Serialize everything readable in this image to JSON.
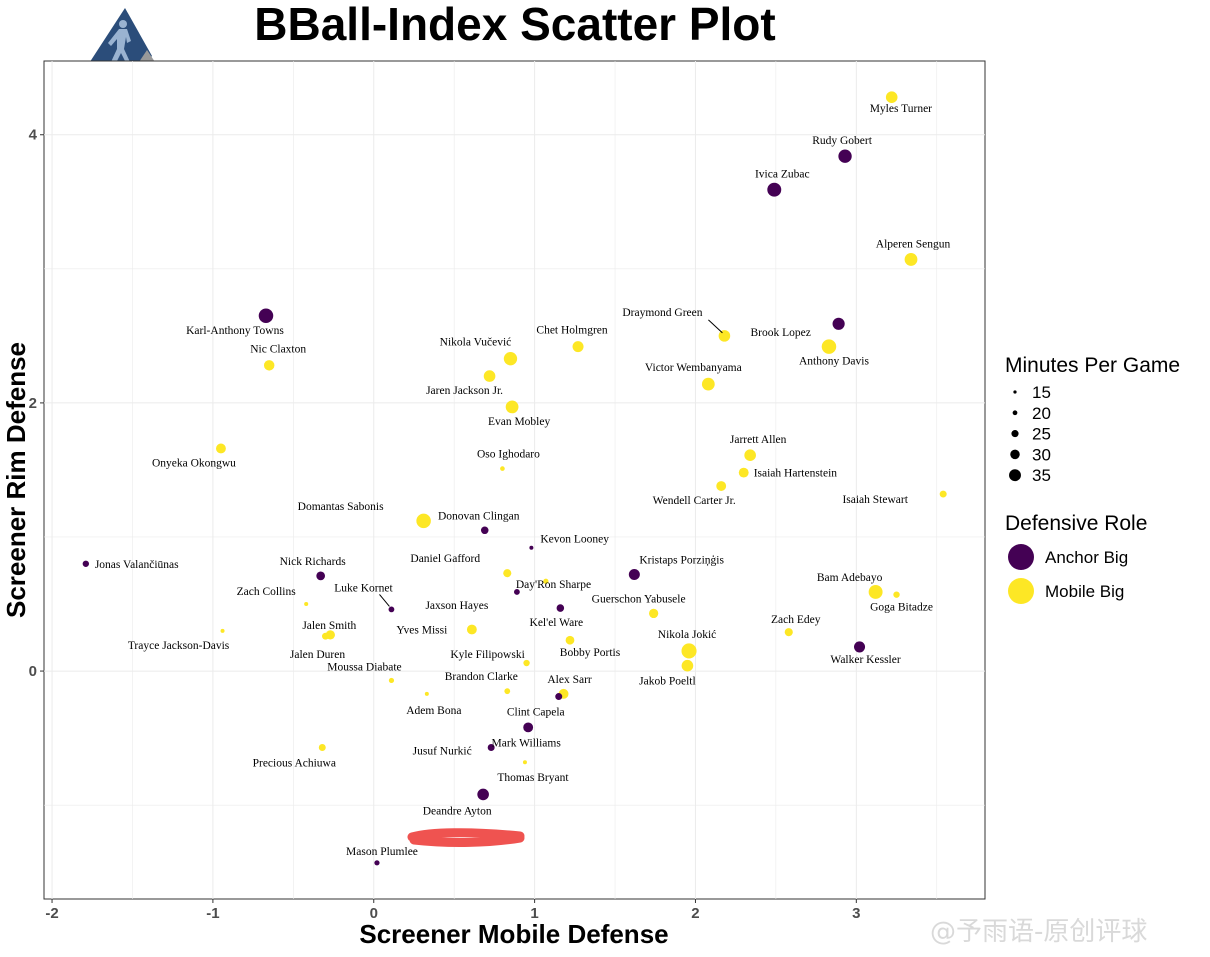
{
  "title": "BBall-Index Scatter Plot",
  "watermark": "@予雨语-原创评球",
  "colors": {
    "anchor": "#440154",
    "mobile": "#FDE725",
    "grid": "#ebebeb",
    "panel_border": "#333333",
    "logo_blue": "#2b4d7a",
    "logo_gray": "#999999",
    "scribble": "#ef5350"
  },
  "chart_data": {
    "type": "scatter",
    "title": "BBall-Index Scatter Plot",
    "xlabel": "Screener Mobile Defense",
    "ylabel": "Screener Rim Defense",
    "xlim": [
      -2.05,
      3.8
    ],
    "ylim": [
      -1.7,
      4.55
    ],
    "x_ticks": [
      -2,
      -1,
      0,
      1,
      2,
      3
    ],
    "y_ticks": [
      0,
      2,
      4
    ],
    "grid": true,
    "size_legend": {
      "title": "Minutes Per Game",
      "values": [
        15,
        20,
        25,
        30,
        35
      ]
    },
    "color_legend": {
      "title": "Defensive Role",
      "entries": [
        "Anchor Big",
        "Mobile Big"
      ]
    },
    "points": [
      {
        "name": "Myles Turner",
        "x": 3.22,
        "y": 4.28,
        "role": "Mobile Big",
        "mpg": 30
      },
      {
        "name": "Rudy Gobert",
        "x": 2.93,
        "y": 3.84,
        "role": "Anchor Big",
        "mpg": 33
      },
      {
        "name": "Ivica Zubac",
        "x": 2.49,
        "y": 3.59,
        "role": "Anchor Big",
        "mpg": 34
      },
      {
        "name": "Alperen Sengun",
        "x": 3.34,
        "y": 3.07,
        "role": "Mobile Big",
        "mpg": 32
      },
      {
        "name": "Brook Lopez",
        "x": 2.89,
        "y": 2.59,
        "role": "Anchor Big",
        "mpg": 31
      },
      {
        "name": "Draymond Green",
        "x": 2.18,
        "y": 2.5,
        "role": "Mobile Big",
        "mpg": 30
      },
      {
        "name": "Anthony Davis",
        "x": 2.83,
        "y": 2.42,
        "role": "Mobile Big",
        "mpg": 35
      },
      {
        "name": "Victor Wembanyama",
        "x": 2.08,
        "y": 2.14,
        "role": "Mobile Big",
        "mpg": 32
      },
      {
        "name": "Karl-Anthony Towns",
        "x": -0.67,
        "y": 2.65,
        "role": "Anchor Big",
        "mpg": 35
      },
      {
        "name": "Nic Claxton",
        "x": -0.65,
        "y": 2.28,
        "role": "Mobile Big",
        "mpg": 28
      },
      {
        "name": "Nikola Vučević",
        "x": 0.85,
        "y": 2.33,
        "role": "Mobile Big",
        "mpg": 33
      },
      {
        "name": "Chet Holmgren",
        "x": 1.27,
        "y": 2.42,
        "role": "Mobile Big",
        "mpg": 29
      },
      {
        "name": "Jaren Jackson Jr.",
        "x": 0.72,
        "y": 2.2,
        "role": "Mobile Big",
        "mpg": 30
      },
      {
        "name": "Evan Mobley",
        "x": 0.86,
        "y": 1.97,
        "role": "Mobile Big",
        "mpg": 32
      },
      {
        "name": "Onyeka Okongwu",
        "x": -0.95,
        "y": 1.66,
        "role": "Mobile Big",
        "mpg": 27
      },
      {
        "name": "Oso Ighodaro",
        "x": 0.8,
        "y": 1.51,
        "role": "Mobile Big",
        "mpg": 18
      },
      {
        "name": "Jarrett Allen",
        "x": 2.34,
        "y": 1.61,
        "role": "Mobile Big",
        "mpg": 30
      },
      {
        "name": "Isaiah Hartenstein",
        "x": 2.3,
        "y": 1.48,
        "role": "Mobile Big",
        "mpg": 27
      },
      {
        "name": "Wendell Carter Jr.",
        "x": 2.16,
        "y": 1.38,
        "role": "Mobile Big",
        "mpg": 27
      },
      {
        "name": "Isaiah Stewart",
        "x": 3.54,
        "y": 1.32,
        "role": "Mobile Big",
        "mpg": 22
      },
      {
        "name": "Domantas Sabonis",
        "x": 0.31,
        "y": 1.12,
        "role": "Mobile Big",
        "mpg": 35
      },
      {
        "name": "Donovan Clingan",
        "x": 0.69,
        "y": 1.05,
        "role": "Anchor Big",
        "mpg": 23
      },
      {
        "name": "Kevon Looney",
        "x": 0.98,
        "y": 0.92,
        "role": "Anchor Big",
        "mpg": 15
      },
      {
        "name": "Jonas Valančiūnas",
        "x": -1.79,
        "y": 0.8,
        "role": "Anchor Big",
        "mpg": 21
      },
      {
        "name": "Nick Richards",
        "x": -0.33,
        "y": 0.71,
        "role": "Anchor Big",
        "mpg": 25
      },
      {
        "name": "Daniel Gafford",
        "x": 0.83,
        "y": 0.73,
        "role": "Mobile Big",
        "mpg": 24
      },
      {
        "name": "Day'Ron Sharpe",
        "x": 1.07,
        "y": 0.67,
        "role": "Mobile Big",
        "mpg": 19
      },
      {
        "name": "Kristaps Porziņģis",
        "x": 1.62,
        "y": 0.72,
        "role": "Anchor Big",
        "mpg": 29
      },
      {
        "name": "Zach Collins",
        "x": -0.42,
        "y": 0.5,
        "role": "Mobile Big",
        "mpg": 17
      },
      {
        "name": "Luke Kornet",
        "x": 0.11,
        "y": 0.46,
        "role": "Anchor Big",
        "mpg": 20
      },
      {
        "name": "Jaxson Hayes",
        "x": 0.89,
        "y": 0.59,
        "role": "Anchor Big",
        "mpg": 20
      },
      {
        "name": "Kel'el Ware",
        "x": 1.16,
        "y": 0.47,
        "role": "Anchor Big",
        "mpg": 23
      },
      {
        "name": "Guerschon Yabusele",
        "x": 1.74,
        "y": 0.43,
        "role": "Mobile Big",
        "mpg": 26
      },
      {
        "name": "Bam Adebayo",
        "x": 3.12,
        "y": 0.59,
        "role": "Mobile Big",
        "mpg": 34
      },
      {
        "name": "Goga Bitadze",
        "x": 3.25,
        "y": 0.57,
        "role": "Mobile Big",
        "mpg": 21
      },
      {
        "name": "Trayce Jackson-Davis",
        "x": -0.94,
        "y": 0.3,
        "role": "Mobile Big",
        "mpg": 16
      },
      {
        "name": "Jalen Smith",
        "x": -0.27,
        "y": 0.27,
        "role": "Mobile Big",
        "mpg": 26
      },
      {
        "name": "Jalen Duren",
        "x": -0.3,
        "y": 0.26,
        "role": "Mobile Big",
        "mpg": 22
      },
      {
        "name": "Yves Missi",
        "x": 0.61,
        "y": 0.31,
        "role": "Mobile Big",
        "mpg": 27
      },
      {
        "name": "Zach Edey",
        "x": 2.58,
        "y": 0.29,
        "role": "Mobile Big",
        "mpg": 24
      },
      {
        "name": "Nikola Jokić",
        "x": 1.96,
        "y": 0.15,
        "role": "Mobile Big",
        "mpg": 36
      },
      {
        "name": "Bobby Portis",
        "x": 1.22,
        "y": 0.23,
        "role": "Mobile Big",
        "mpg": 25
      },
      {
        "name": "Walker Kessler",
        "x": 3.02,
        "y": 0.18,
        "role": "Anchor Big",
        "mpg": 29
      },
      {
        "name": "Kyle Filipowski",
        "x": 0.95,
        "y": 0.06,
        "role": "Mobile Big",
        "mpg": 21
      },
      {
        "name": "Jakob Poeltl",
        "x": 1.95,
        "y": 0.04,
        "role": "Mobile Big",
        "mpg": 30
      },
      {
        "name": "Moussa Diabate",
        "x": 0.11,
        "y": -0.07,
        "role": "Mobile Big",
        "mpg": 19
      },
      {
        "name": "Brandon Clarke",
        "x": 0.83,
        "y": -0.15,
        "role": "Mobile Big",
        "mpg": 20
      },
      {
        "name": "Adem Bona",
        "x": 0.33,
        "y": -0.17,
        "role": "Mobile Big",
        "mpg": 16
      },
      {
        "name": "Alex Sarr",
        "x": 1.18,
        "y": -0.17,
        "role": "Mobile Big",
        "mpg": 27
      },
      {
        "name": "Clint Capela",
        "x": 1.15,
        "y": -0.19,
        "role": "Anchor Big",
        "mpg": 22
      },
      {
        "name": "Mark Williams",
        "x": 0.96,
        "y": -0.42,
        "role": "Anchor Big",
        "mpg": 27
      },
      {
        "name": "Precious Achiuwa",
        "x": -0.32,
        "y": -0.57,
        "role": "Mobile Big",
        "mpg": 22
      },
      {
        "name": "Jusuf Nurkić",
        "x": 0.73,
        "y": -0.57,
        "role": "Anchor Big",
        "mpg": 22
      },
      {
        "name": "Thomas Bryant",
        "x": 0.94,
        "y": -0.68,
        "role": "Mobile Big",
        "mpg": 14
      },
      {
        "name": "Deandre Ayton",
        "x": 0.68,
        "y": -0.92,
        "role": "Anchor Big",
        "mpg": 30
      },
      {
        "name": "Mason Plumlee",
        "x": 0.02,
        "y": -1.43,
        "role": "Anchor Big",
        "mpg": 19
      }
    ]
  }
}
